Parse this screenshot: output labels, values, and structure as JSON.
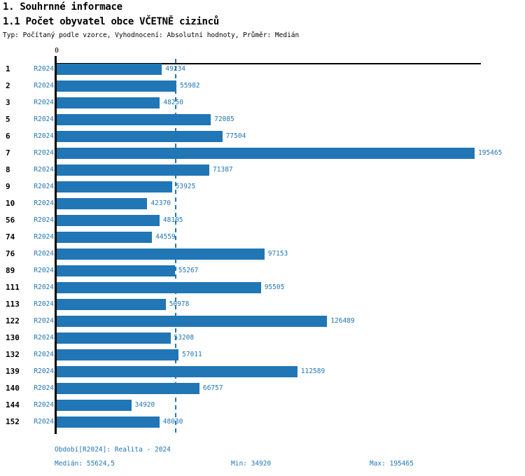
{
  "page": {
    "title": "1. Souhrnné informace",
    "subtitle": "1.1 Počet obyvatel obce VČETNĚ cizinců",
    "meta_line": "Typ: Počítaný podle vzorce, Vyhodnocení: Absolutní hodnoty, Průměr: Medián"
  },
  "chart_data": {
    "type": "bar",
    "orientation": "horizontal",
    "title": "1.1 Počet obyvatel obce VČETNĚ cizinců",
    "series_label": "R2024",
    "categories": [
      "1",
      "2",
      "3",
      "5",
      "6",
      "7",
      "8",
      "9",
      "10",
      "56",
      "74",
      "76",
      "89",
      "111",
      "113",
      "122",
      "130",
      "132",
      "139",
      "140",
      "144",
      "152"
    ],
    "values": [
      49234,
      55982,
      48250,
      72085,
      77504,
      195465,
      71387,
      53925,
      42370,
      48105,
      44559,
      97153,
      55267,
      95505,
      50978,
      126489,
      53208,
      57011,
      112589,
      66757,
      34920,
      48030
    ],
    "xlim": [
      0,
      195465
    ],
    "zero_tick_label": "0",
    "median_value": 55624.5,
    "median_line_shown": true,
    "grid": false,
    "legend": "none",
    "bar_color": "#2176b5",
    "value_label_color": "#2176b5"
  },
  "footer": {
    "period": "Období[R2024]: Realita - 2024",
    "median": "Medián: 55624,5",
    "min": "Min: 34920",
    "max": "Max: 195465"
  },
  "colors": {
    "accent": "#2176b5",
    "axis": "#000000",
    "text": "#000000",
    "background": "#ffffff"
  }
}
